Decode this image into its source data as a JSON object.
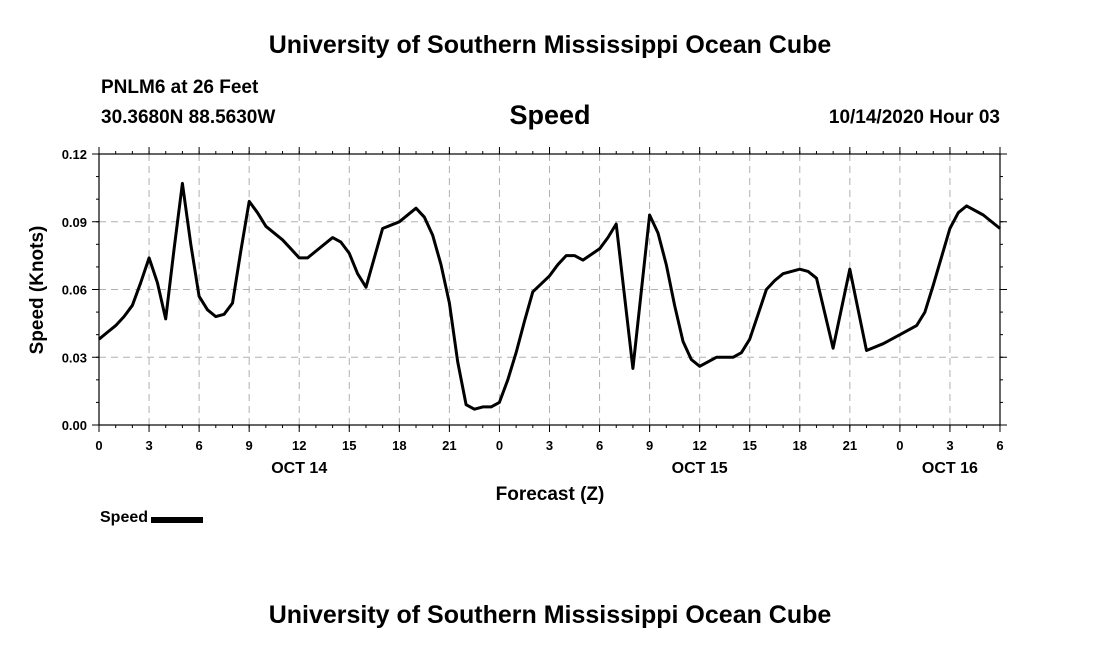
{
  "header": {
    "title": "University of Southern Mississippi Ocean Cube",
    "station": "PNLM6 at 26 Feet",
    "coords": "30.3680N 88.5630W",
    "parameter": "Speed",
    "datetime": "10/14/2020 Hour 03"
  },
  "footer": {
    "title": "University of Southern Mississippi Ocean Cube"
  },
  "legend": {
    "label": "Speed",
    "color": "#000000"
  },
  "chart_data": {
    "type": "line",
    "title": "Speed",
    "xlabel": "Forecast (Z)",
    "ylabel": "Speed (Knots)",
    "xlim": [
      0,
      54
    ],
    "ylim": [
      0,
      0.12
    ],
    "grid": true,
    "legend_position": "bottom-left",
    "y_ticks": [
      {
        "value": 0,
        "label": "0.00"
      },
      {
        "value": 0.03,
        "label": "0.03"
      },
      {
        "value": 0.06,
        "label": "0.06"
      },
      {
        "value": 0.09,
        "label": "0.09"
      },
      {
        "value": 0.12,
        "label": "0.12"
      }
    ],
    "x_ticks": [
      {
        "value": 0,
        "label": "0"
      },
      {
        "value": 3,
        "label": "3"
      },
      {
        "value": 6,
        "label": "6"
      },
      {
        "value": 9,
        "label": "9"
      },
      {
        "value": 12,
        "label": "12"
      },
      {
        "value": 15,
        "label": "15"
      },
      {
        "value": 18,
        "label": "18"
      },
      {
        "value": 21,
        "label": "21"
      },
      {
        "value": 24,
        "label": "0"
      },
      {
        "value": 27,
        "label": "3"
      },
      {
        "value": 30,
        "label": "6"
      },
      {
        "value": 33,
        "label": "9"
      },
      {
        "value": 36,
        "label": "12"
      },
      {
        "value": 39,
        "label": "15"
      },
      {
        "value": 42,
        "label": "18"
      },
      {
        "value": 45,
        "label": "21"
      },
      {
        "value": 48,
        "label": "0"
      },
      {
        "value": 51,
        "label": "3"
      },
      {
        "value": 54,
        "label": "6"
      }
    ],
    "date_labels": [
      {
        "value": 12,
        "label": "OCT 14"
      },
      {
        "value": 36,
        "label": "OCT 15"
      },
      {
        "value": 51,
        "label": "OCT 16"
      }
    ],
    "series": [
      {
        "name": "Speed",
        "color": "#000000",
        "points": [
          [
            0,
            0.038
          ],
          [
            0.5,
            0.041
          ],
          [
            1,
            0.044
          ],
          [
            1.5,
            0.048
          ],
          [
            2,
            0.053
          ],
          [
            2.5,
            0.063
          ],
          [
            3,
            0.074
          ],
          [
            3.5,
            0.063
          ],
          [
            4,
            0.047
          ],
          [
            4.5,
            0.078
          ],
          [
            5,
            0.107
          ],
          [
            5.5,
            0.08
          ],
          [
            6,
            0.057
          ],
          [
            6.5,
            0.051
          ],
          [
            7,
            0.048
          ],
          [
            7.5,
            0.049
          ],
          [
            8,
            0.054
          ],
          [
            8.5,
            0.077
          ],
          [
            9,
            0.099
          ],
          [
            9.5,
            0.094
          ],
          [
            10,
            0.088
          ],
          [
            11,
            0.082
          ],
          [
            11.5,
            0.078
          ],
          [
            12,
            0.074
          ],
          [
            12.5,
            0.074
          ],
          [
            13,
            0.077
          ],
          [
            14,
            0.083
          ],
          [
            14.5,
            0.081
          ],
          [
            15,
            0.076
          ],
          [
            15.5,
            0.067
          ],
          [
            16,
            0.061
          ],
          [
            17,
            0.087
          ],
          [
            18,
            0.09
          ],
          [
            19,
            0.096
          ],
          [
            19.5,
            0.092
          ],
          [
            20,
            0.084
          ],
          [
            20.5,
            0.071
          ],
          [
            21,
            0.054
          ],
          [
            21.5,
            0.028
          ],
          [
            22,
            0.009
          ],
          [
            22.5,
            0.007
          ],
          [
            23,
            0.008
          ],
          [
            23.5,
            0.008
          ],
          [
            24,
            0.01
          ],
          [
            24.5,
            0.02
          ],
          [
            25,
            0.032
          ],
          [
            25.5,
            0.046
          ],
          [
            26,
            0.059
          ],
          [
            27,
            0.066
          ],
          [
            27.5,
            0.071
          ],
          [
            28,
            0.075
          ],
          [
            28.5,
            0.075
          ],
          [
            29,
            0.073
          ],
          [
            30,
            0.078
          ],
          [
            30.5,
            0.083
          ],
          [
            31,
            0.089
          ],
          [
            32,
            0.025
          ],
          [
            33,
            0.093
          ],
          [
            33.5,
            0.085
          ],
          [
            34,
            0.071
          ],
          [
            34.5,
            0.053
          ],
          [
            35,
            0.037
          ],
          [
            35.5,
            0.029
          ],
          [
            36,
            0.026
          ],
          [
            37,
            0.03
          ],
          [
            38,
            0.03
          ],
          [
            38.5,
            0.032
          ],
          [
            39,
            0.038
          ],
          [
            39.5,
            0.049
          ],
          [
            40,
            0.06
          ],
          [
            40.5,
            0.064
          ],
          [
            41,
            0.067
          ],
          [
            41.5,
            0.068
          ],
          [
            42,
            0.069
          ],
          [
            42.5,
            0.068
          ],
          [
            43,
            0.065
          ],
          [
            44,
            0.034
          ],
          [
            45,
            0.069
          ],
          [
            46,
            0.033
          ],
          [
            47,
            0.036
          ],
          [
            48,
            0.04
          ],
          [
            49,
            0.044
          ],
          [
            49.5,
            0.05
          ],
          [
            50,
            0.062
          ],
          [
            51,
            0.087
          ],
          [
            51.5,
            0.094
          ],
          [
            52,
            0.097
          ],
          [
            53,
            0.093
          ],
          [
            54,
            0.087
          ]
        ]
      }
    ]
  }
}
